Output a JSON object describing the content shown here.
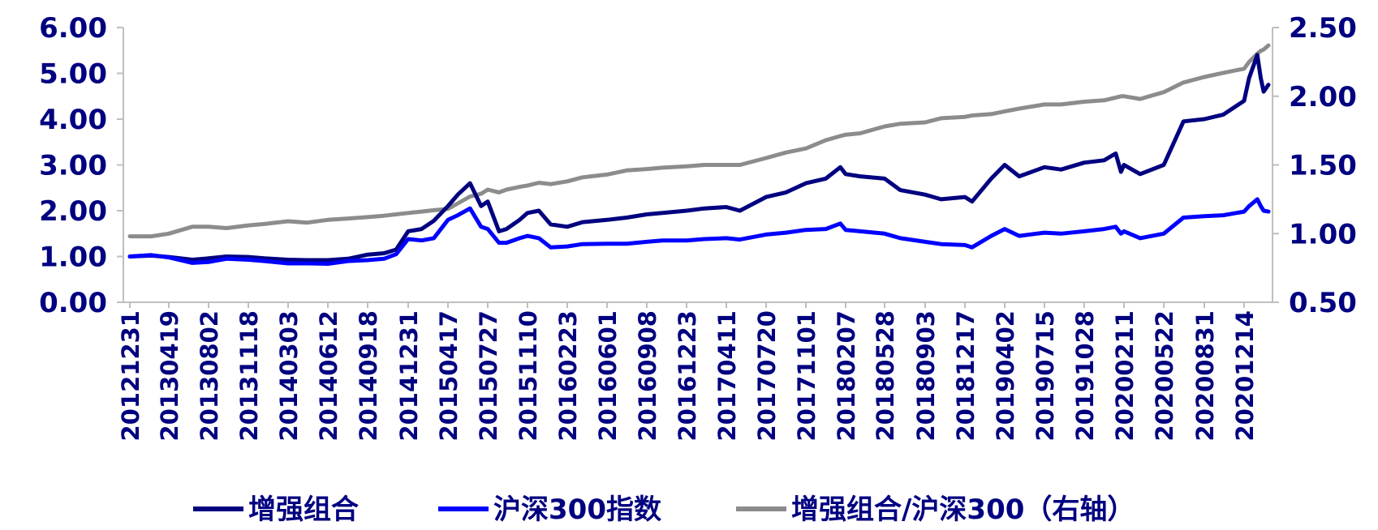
{
  "chart_data": {
    "type": "line",
    "dual_axis": true,
    "y_left": {
      "min": 0,
      "max": 6,
      "ticks": [
        "0.00",
        "1.00",
        "2.00",
        "3.00",
        "4.00",
        "5.00",
        "6.00"
      ]
    },
    "y_right": {
      "min": 0.5,
      "max": 2.5,
      "ticks": [
        "0.50",
        "1.00",
        "1.50",
        "2.00",
        "2.50"
      ]
    },
    "x_tick_labels": [
      "20121231",
      "20130419",
      "20130802",
      "20131118",
      "20140303",
      "20140612",
      "20140918",
      "20141231",
      "20150417",
      "20150727",
      "20151110",
      "20160223",
      "20160601",
      "20160908",
      "20161223",
      "20170411",
      "20170720",
      "20171101",
      "20180207",
      "20180528",
      "20180903",
      "20181217",
      "20190402",
      "20190715",
      "20191028",
      "20200211",
      "20200522",
      "20200831",
      "20201214"
    ],
    "x_end_date": "20210331",
    "legend": {
      "position": "bottom"
    },
    "grid": false,
    "series": [
      {
        "name": "增强组合",
        "axis": "left",
        "color": "#000080",
        "points": [
          [
            "20121231",
            1.0
          ],
          [
            "20130301",
            1.02
          ],
          [
            "20130419",
            0.99
          ],
          [
            "20130620",
            0.93
          ],
          [
            "20130802",
            0.96
          ],
          [
            "20130920",
            1.0
          ],
          [
            "20131118",
            0.99
          ],
          [
            "20131230",
            0.96
          ],
          [
            "20140303",
            0.93
          ],
          [
            "20140420",
            0.92
          ],
          [
            "20140612",
            0.92
          ],
          [
            "20140801",
            0.95
          ],
          [
            "20140918",
            1.04
          ],
          [
            "20141030",
            1.07
          ],
          [
            "20141130",
            1.15
          ],
          [
            "20141231",
            1.55
          ],
          [
            "20150205",
            1.6
          ],
          [
            "20150310",
            1.78
          ],
          [
            "20150417",
            2.1
          ],
          [
            "20150512",
            2.35
          ],
          [
            "20150612",
            2.6
          ],
          [
            "20150710",
            2.1
          ],
          [
            "20150727",
            2.2
          ],
          [
            "20150826",
            1.55
          ],
          [
            "20150915",
            1.6
          ],
          [
            "20151020",
            1.8
          ],
          [
            "20151110",
            1.95
          ],
          [
            "20151210",
            2.0
          ],
          [
            "20160110",
            1.7
          ],
          [
            "20160223",
            1.65
          ],
          [
            "20160401",
            1.75
          ],
          [
            "20160601",
            1.8
          ],
          [
            "20160720",
            1.85
          ],
          [
            "20160908",
            1.92
          ],
          [
            "20161020",
            1.95
          ],
          [
            "20161223",
            2.0
          ],
          [
            "20170210",
            2.05
          ],
          [
            "20170411",
            2.08
          ],
          [
            "20170515",
            2.0
          ],
          [
            "20170720",
            2.3
          ],
          [
            "20170910",
            2.4
          ],
          [
            "20171101",
            2.6
          ],
          [
            "20171220",
            2.7
          ],
          [
            "20180125",
            2.95
          ],
          [
            "20180207",
            2.8
          ],
          [
            "20180320",
            2.75
          ],
          [
            "20180528",
            2.7
          ],
          [
            "20180705",
            2.45
          ],
          [
            "20180903",
            2.35
          ],
          [
            "20181015",
            2.25
          ],
          [
            "20181217",
            2.3
          ],
          [
            "20190105",
            2.2
          ],
          [
            "20190225",
            2.7
          ],
          [
            "20190402",
            3.0
          ],
          [
            "20190510",
            2.75
          ],
          [
            "20190715",
            2.95
          ],
          [
            "20190828",
            2.9
          ],
          [
            "20191028",
            3.05
          ],
          [
            "20191220",
            3.1
          ],
          [
            "20200120",
            3.25
          ],
          [
            "20200203",
            2.85
          ],
          [
            "20200211",
            3.0
          ],
          [
            "20200323",
            2.8
          ],
          [
            "20200522",
            3.0
          ],
          [
            "20200710",
            3.95
          ],
          [
            "20200831",
            4.0
          ],
          [
            "20201020",
            4.1
          ],
          [
            "20201214",
            4.4
          ],
          [
            "20210105",
            4.9
          ],
          [
            "20210210",
            5.4
          ],
          [
            "20210225",
            4.9
          ],
          [
            "20210310",
            4.6
          ],
          [
            "20210331",
            4.75
          ]
        ]
      },
      {
        "name": "沪深300指数",
        "axis": "left",
        "color": "#0000FF",
        "points": [
          [
            "20121231",
            1.0
          ],
          [
            "20130301",
            1.03
          ],
          [
            "20130419",
            0.98
          ],
          [
            "20130620",
            0.86
          ],
          [
            "20130802",
            0.88
          ],
          [
            "20130920",
            0.95
          ],
          [
            "20131118",
            0.93
          ],
          [
            "20131230",
            0.9
          ],
          [
            "20140303",
            0.85
          ],
          [
            "20140420",
            0.85
          ],
          [
            "20140612",
            0.84
          ],
          [
            "20140801",
            0.9
          ],
          [
            "20140918",
            0.92
          ],
          [
            "20141030",
            0.95
          ],
          [
            "20141130",
            1.05
          ],
          [
            "20141231",
            1.38
          ],
          [
            "20150205",
            1.35
          ],
          [
            "20150310",
            1.4
          ],
          [
            "20150417",
            1.8
          ],
          [
            "20150512",
            1.9
          ],
          [
            "20150612",
            2.05
          ],
          [
            "20150710",
            1.65
          ],
          [
            "20150727",
            1.6
          ],
          [
            "20150826",
            1.3
          ],
          [
            "20150915",
            1.3
          ],
          [
            "20151020",
            1.4
          ],
          [
            "20151110",
            1.45
          ],
          [
            "20151210",
            1.4
          ],
          [
            "20160110",
            1.2
          ],
          [
            "20160223",
            1.22
          ],
          [
            "20160401",
            1.27
          ],
          [
            "20160601",
            1.28
          ],
          [
            "20160720",
            1.28
          ],
          [
            "20160908",
            1.32
          ],
          [
            "20161020",
            1.35
          ],
          [
            "20161223",
            1.35
          ],
          [
            "20170210",
            1.38
          ],
          [
            "20170411",
            1.4
          ],
          [
            "20170515",
            1.37
          ],
          [
            "20170720",
            1.48
          ],
          [
            "20170910",
            1.52
          ],
          [
            "20171101",
            1.58
          ],
          [
            "20171220",
            1.6
          ],
          [
            "20180125",
            1.72
          ],
          [
            "20180207",
            1.58
          ],
          [
            "20180320",
            1.55
          ],
          [
            "20180528",
            1.5
          ],
          [
            "20180705",
            1.4
          ],
          [
            "20180903",
            1.32
          ],
          [
            "20181015",
            1.27
          ],
          [
            "20181217",
            1.25
          ],
          [
            "20190105",
            1.2
          ],
          [
            "20190225",
            1.45
          ],
          [
            "20190402",
            1.6
          ],
          [
            "20190510",
            1.45
          ],
          [
            "20190715",
            1.52
          ],
          [
            "20190828",
            1.5
          ],
          [
            "20191028",
            1.55
          ],
          [
            "20191220",
            1.6
          ],
          [
            "20200120",
            1.65
          ],
          [
            "20200203",
            1.5
          ],
          [
            "20200211",
            1.55
          ],
          [
            "20200323",
            1.4
          ],
          [
            "20200522",
            1.5
          ],
          [
            "20200710",
            1.85
          ],
          [
            "20200831",
            1.88
          ],
          [
            "20201020",
            1.9
          ],
          [
            "20201214",
            1.98
          ],
          [
            "20210105",
            2.1
          ],
          [
            "20210210",
            2.25
          ],
          [
            "20210225",
            2.1
          ],
          [
            "20210310",
            2.0
          ],
          [
            "20210331",
            1.98
          ]
        ]
      },
      {
        "name": "增强组合/沪深300（右轴）",
        "axis": "right",
        "color": "#8C8C8C",
        "points": [
          [
            "20121231",
            0.98
          ],
          [
            "20130301",
            0.98
          ],
          [
            "20130419",
            1.0
          ],
          [
            "20130620",
            1.05
          ],
          [
            "20130802",
            1.05
          ],
          [
            "20130920",
            1.04
          ],
          [
            "20131118",
            1.06
          ],
          [
            "20131230",
            1.07
          ],
          [
            "20140303",
            1.09
          ],
          [
            "20140420",
            1.08
          ],
          [
            "20140612",
            1.1
          ],
          [
            "20140801",
            1.11
          ],
          [
            "20140918",
            1.12
          ],
          [
            "20141030",
            1.13
          ],
          [
            "20141130",
            1.14
          ],
          [
            "20141231",
            1.15
          ],
          [
            "20150205",
            1.16
          ],
          [
            "20150310",
            1.17
          ],
          [
            "20150417",
            1.18
          ],
          [
            "20150512",
            1.22
          ],
          [
            "20150612",
            1.27
          ],
          [
            "20150710",
            1.29
          ],
          [
            "20150727",
            1.32
          ],
          [
            "20150826",
            1.3
          ],
          [
            "20150915",
            1.32
          ],
          [
            "20151020",
            1.34
          ],
          [
            "20151110",
            1.35
          ],
          [
            "20151210",
            1.37
          ],
          [
            "20160110",
            1.36
          ],
          [
            "20160223",
            1.38
          ],
          [
            "20160401",
            1.41
          ],
          [
            "20160601",
            1.43
          ],
          [
            "20160720",
            1.46
          ],
          [
            "20160908",
            1.47
          ],
          [
            "20161020",
            1.48
          ],
          [
            "20161223",
            1.49
          ],
          [
            "20170210",
            1.5
          ],
          [
            "20170411",
            1.5
          ],
          [
            "20170515",
            1.5
          ],
          [
            "20170720",
            1.55
          ],
          [
            "20170910",
            1.59
          ],
          [
            "20171101",
            1.62
          ],
          [
            "20171220",
            1.68
          ],
          [
            "20180125",
            1.71
          ],
          [
            "20180207",
            1.72
          ],
          [
            "20180320",
            1.73
          ],
          [
            "20180528",
            1.78
          ],
          [
            "20180705",
            1.8
          ],
          [
            "20180903",
            1.81
          ],
          [
            "20181015",
            1.84
          ],
          [
            "20181217",
            1.85
          ],
          [
            "20190105",
            1.86
          ],
          [
            "20190225",
            1.87
          ],
          [
            "20190402",
            1.89
          ],
          [
            "20190510",
            1.91
          ],
          [
            "20190715",
            1.94
          ],
          [
            "20190828",
            1.94
          ],
          [
            "20191028",
            1.96
          ],
          [
            "20191220",
            1.97
          ],
          [
            "20200120",
            1.99
          ],
          [
            "20200203",
            2.0
          ],
          [
            "20200211",
            2.0
          ],
          [
            "20200323",
            1.98
          ],
          [
            "20200522",
            2.03
          ],
          [
            "20200710",
            2.1
          ],
          [
            "20200831",
            2.14
          ],
          [
            "20201020",
            2.17
          ],
          [
            "20201214",
            2.2
          ],
          [
            "20210105",
            2.25
          ],
          [
            "20210210",
            2.31
          ],
          [
            "20210225",
            2.33
          ],
          [
            "20210310",
            2.34
          ],
          [
            "20210331",
            2.37
          ]
        ]
      }
    ]
  }
}
